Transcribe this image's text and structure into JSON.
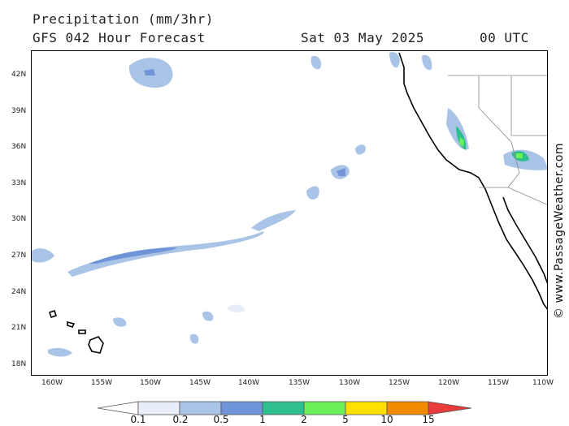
{
  "header": {
    "title": "Precipitation (mm/3hr)",
    "subtitle": "GFS 042 Hour Forecast",
    "date": "Sat 03 May 2025",
    "time": "00 UTC"
  },
  "map": {
    "lat_labels": [
      "42N",
      "39N",
      "36N",
      "33N",
      "30N",
      "27N",
      "24N",
      "21N",
      "18N"
    ],
    "lon_labels": [
      "160W",
      "155W",
      "150W",
      "145W",
      "140W",
      "135W",
      "130W",
      "125W",
      "120W",
      "115W",
      "110W"
    ]
  },
  "copyright": "© www.PassageWeather.com",
  "legend": {
    "labels": [
      "0.1",
      "0.2",
      "0.5",
      "1",
      "2",
      "5",
      "10",
      "15"
    ],
    "colors": [
      "#e8eef8",
      "#a9c4e6",
      "#6f95d8",
      "#2fbf8f",
      "#6cf05a",
      "#ffe000",
      "#f28a00",
      "#e83c3c"
    ]
  }
}
